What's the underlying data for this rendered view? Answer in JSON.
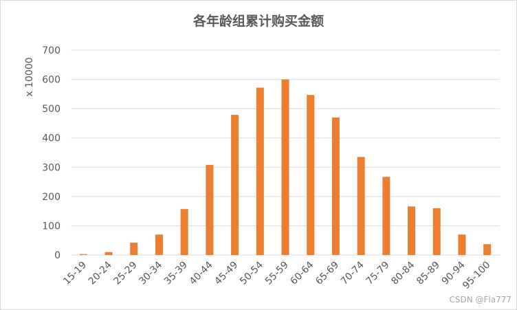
{
  "watermark": "CSDN @Fla777",
  "chart_data": {
    "type": "bar",
    "title": "各年龄组累计购买金额",
    "xlabel": "",
    "ylabel": "x 10000",
    "categories": [
      "15-19",
      "20-24",
      "25-29",
      "30-34",
      "35-39",
      "40-44",
      "45-49",
      "50-54",
      "55-59",
      "60-64",
      "65-69",
      "70-74",
      "75-79",
      "80-84",
      "85-89",
      "90-94",
      "95-100"
    ],
    "values": [
      3,
      10,
      42,
      70,
      157,
      308,
      479,
      572,
      600,
      547,
      470,
      335,
      267,
      166,
      160,
      70,
      37
    ],
    "ylim": [
      0,
      700
    ],
    "yticks": [
      0,
      100,
      200,
      300,
      400,
      500,
      600,
      700
    ],
    "grid": true,
    "legend": "none",
    "bar_color": "#ed7d31",
    "grid_color": "#d9d9d9"
  }
}
